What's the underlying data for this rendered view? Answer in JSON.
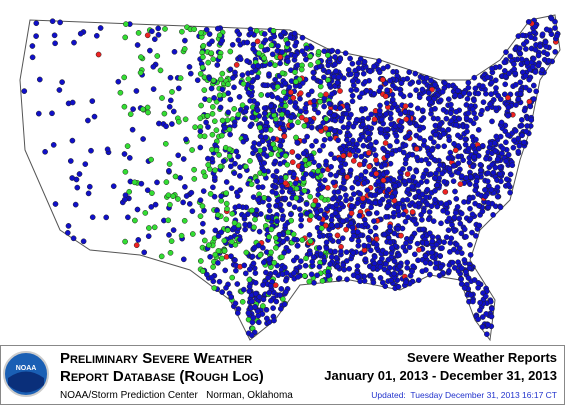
{
  "logo": "NOAA",
  "header": {
    "title_line1": "Preliminary Severe Weather",
    "title_line2": "Report Database (Rough Log)",
    "org": "NOAA/Storm Prediction Center   Norman, Oklahoma"
  },
  "info": {
    "title": "Severe Weather Reports",
    "range": "January 01, 2013 - December 31, 2013",
    "updated": "Updated:  Tuesday December 31, 2013 16:17 CT"
  }
}
